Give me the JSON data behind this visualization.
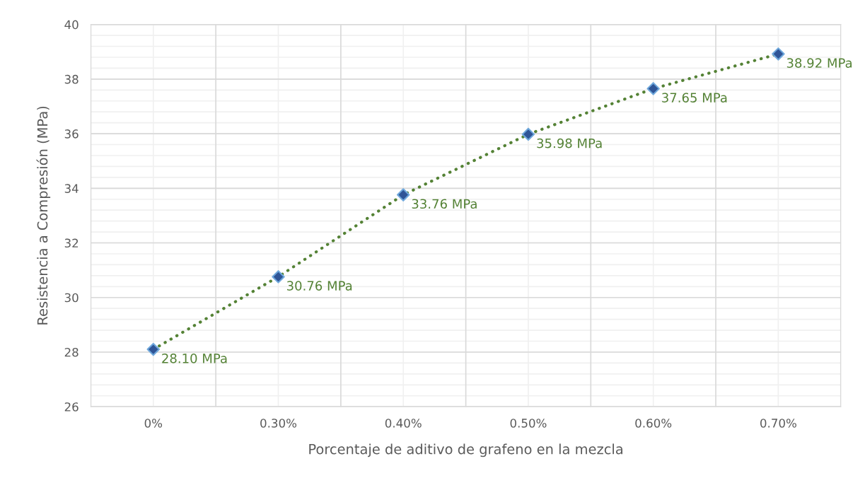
{
  "chart_data": {
    "type": "line",
    "xlabel": "Porcentaje de aditivo de grafeno en la mezcla",
    "ylabel": "Resistencia a Compresión (MPa)",
    "categories": [
      "0%",
      "0.30%",
      "0.40%",
      "0.50%",
      "0.60%",
      "0.70%"
    ],
    "series": [
      {
        "color": "#548235",
        "line_style": "dotted",
        "marker": "none",
        "values": [
          28.1,
          30.76,
          33.76,
          35.98,
          37.65,
          38.92
        ]
      },
      {
        "type": "scatter",
        "color": "#2f5597",
        "marker": "diamond",
        "values": [
          28.1,
          30.76,
          33.76,
          35.98,
          37.65,
          38.92
        ],
        "value_labels": [
          "28.10 MPa",
          "30.76 MPa",
          "33.76 MPa",
          "35.98 MPa",
          "37.65 MPa",
          "38.92 MPa"
        ]
      }
    ],
    "ylim": [
      26,
      40
    ],
    "yticks": [
      26,
      28,
      30,
      32,
      34,
      36,
      38,
      40
    ],
    "grid": true
  }
}
